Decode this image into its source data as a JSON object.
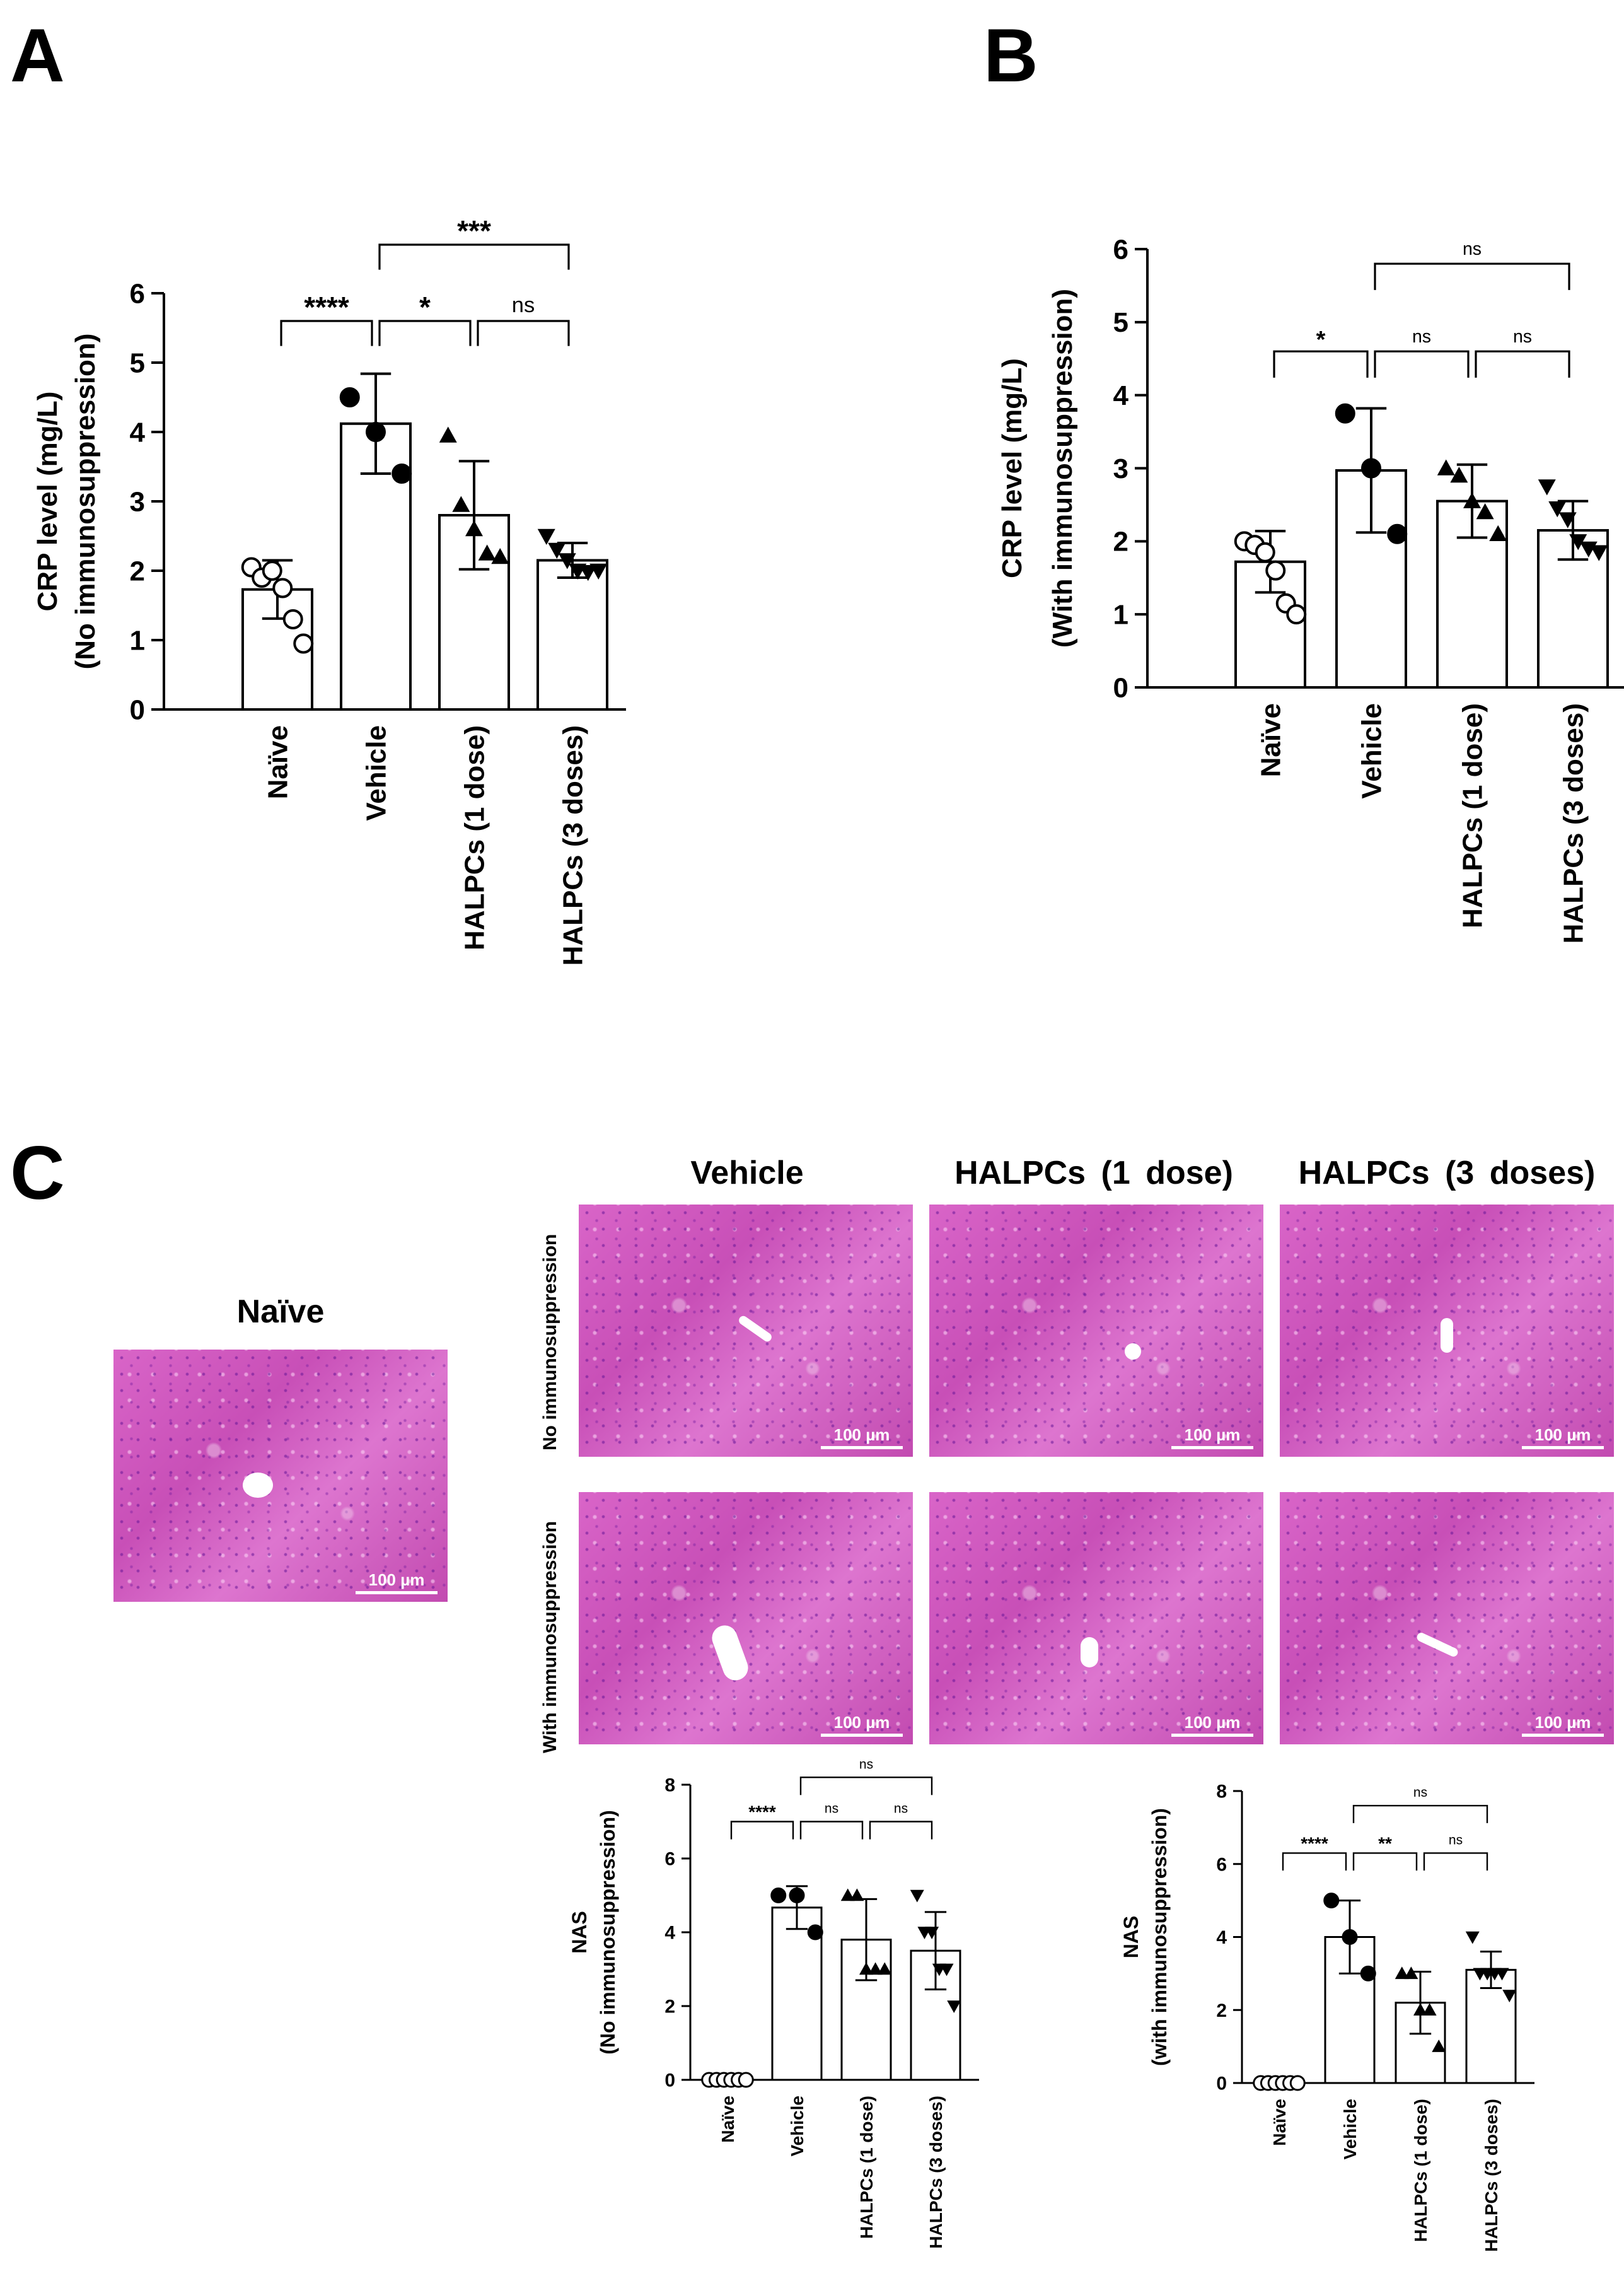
{
  "panels": {
    "a": "A",
    "b": "B",
    "c": "C"
  },
  "chart_data": [
    {
      "id": "A",
      "type": "bar",
      "ylabel": "CRP level (mg/L)",
      "ylabel2": "(No immunosuppression)",
      "ylim": [
        0,
        6
      ],
      "yticks": [
        0,
        1,
        2,
        3,
        4,
        5,
        6
      ],
      "categories": [
        "Naïve",
        "Vehicle",
        "HALPCs (1 dose)",
        "HALPCs (3 doses)"
      ],
      "markers": [
        "circle-open",
        "circle-filled",
        "triangle-up",
        "triangle-down"
      ],
      "values": [
        1.73,
        4.12,
        2.8,
        2.15
      ],
      "errors": [
        0.42,
        0.72,
        0.78,
        0.25
      ],
      "points": [
        [
          2.05,
          1.9,
          2.0,
          1.75,
          1.3,
          0.95
        ],
        [
          4.5,
          4.0,
          3.4
        ],
        [
          3.95,
          2.95,
          2.6,
          2.25,
          2.2
        ],
        [
          2.5,
          2.3,
          2.15,
          2.0,
          1.98,
          2.0
        ]
      ],
      "comparisons": [
        {
          "from": 0,
          "to": 1,
          "label": "****",
          "y": 5.6
        },
        {
          "from": 1,
          "to": 2,
          "label": "*",
          "y": 5.6
        },
        {
          "from": 2,
          "to": 3,
          "label": "ns",
          "y": 5.6
        },
        {
          "from": 1,
          "to": 3,
          "label": "***",
          "y": 6.7
        }
      ]
    },
    {
      "id": "B",
      "type": "bar",
      "ylabel": "CRP level (mg/L)",
      "ylabel2": "(With immunosuppression)",
      "ylim": [
        0,
        6
      ],
      "yticks": [
        0,
        1,
        2,
        3,
        4,
        5,
        6
      ],
      "categories": [
        "Naïve",
        "Vehicle",
        "HALPCs (1 dose)",
        "HALPCs (3 doses)"
      ],
      "markers": [
        "circle-open",
        "circle-filled",
        "triangle-up",
        "triangle-down"
      ],
      "values": [
        1.72,
        2.97,
        2.55,
        2.15
      ],
      "errors": [
        0.42,
        0.85,
        0.5,
        0.4
      ],
      "points": [
        [
          2.0,
          1.95,
          1.85,
          1.6,
          1.15,
          1.0
        ],
        [
          3.75,
          3.0,
          2.1
        ],
        [
          3.0,
          2.9,
          2.55,
          2.4,
          2.1
        ],
        [
          2.75,
          2.45,
          2.3,
          2.0,
          1.9,
          1.85
        ]
      ],
      "comparisons": [
        {
          "from": 0,
          "to": 1,
          "label": "*",
          "y": 4.6
        },
        {
          "from": 1,
          "to": 2,
          "label": "ns",
          "y": 4.6
        },
        {
          "from": 2,
          "to": 3,
          "label": "ns",
          "y": 4.6
        },
        {
          "from": 1,
          "to": 3,
          "label": "ns",
          "y": 5.8
        }
      ]
    },
    {
      "id": "C-left",
      "type": "bar",
      "ylabel": "NAS",
      "ylabel2": "(No immunosuppression)",
      "ylim": [
        0,
        8
      ],
      "yticks": [
        0,
        2,
        4,
        6,
        8
      ],
      "categories": [
        "Naïve",
        "Vehicle",
        "HALPCs (1 dose)",
        "HALPCs (3 doses)"
      ],
      "markers": [
        "circle-open",
        "circle-filled",
        "triangle-up",
        "triangle-down"
      ],
      "values": [
        0,
        4.67,
        3.8,
        3.5
      ],
      "errors": [
        0,
        0.58,
        1.1,
        1.05
      ],
      "points": [
        [
          0,
          0,
          0,
          0,
          0,
          0
        ],
        [
          5,
          5,
          4
        ],
        [
          5,
          5,
          3,
          3,
          3
        ],
        [
          5,
          4,
          4,
          3,
          3,
          2
        ]
      ],
      "comparisons": [
        {
          "from": 0,
          "to": 1,
          "label": "****",
          "y": 7.0
        },
        {
          "from": 1,
          "to": 2,
          "label": "ns",
          "y": 7.0
        },
        {
          "from": 2,
          "to": 3,
          "label": "ns",
          "y": 7.0
        },
        {
          "from": 1,
          "to": 3,
          "label": "ns",
          "y": 8.2
        }
      ]
    },
    {
      "id": "C-right",
      "type": "bar",
      "ylabel": "NAS",
      "ylabel2": "(with immunosuppression)",
      "ylim": [
        0,
        8
      ],
      "yticks": [
        0,
        2,
        4,
        6,
        8
      ],
      "categories": [
        "Naïve",
        "Vehicle",
        "HALPCs (1 dose)",
        "HALPCs (3 doses)"
      ],
      "markers": [
        "circle-open",
        "circle-filled",
        "triangle-up",
        "triangle-down"
      ],
      "values": [
        0,
        4.0,
        2.2,
        3.1
      ],
      "errors": [
        0,
        1.0,
        0.85,
        0.5
      ],
      "points": [
        [
          0,
          0,
          0,
          0,
          0,
          0
        ],
        [
          5,
          4,
          3
        ],
        [
          3,
          3,
          2,
          2,
          1
        ],
        [
          4,
          3,
          3,
          3,
          3,
          2.4
        ]
      ],
      "comparisons": [
        {
          "from": 0,
          "to": 1,
          "label": "****",
          "y": 6.3
        },
        {
          "from": 1,
          "to": 2,
          "label": "**",
          "y": 6.3
        },
        {
          "from": 2,
          "to": 3,
          "label": "ns",
          "y": 6.3
        },
        {
          "from": 1,
          "to": 3,
          "label": "ns",
          "y": 7.6
        }
      ]
    }
  ],
  "histology": {
    "naive_title": "Naïve",
    "columns": [
      "Vehicle",
      "HALPCs (1 dose)",
      "HALPCs (3 doses)"
    ],
    "rows": [
      "No immunosuppression",
      "With immunosuppression"
    ],
    "scale_label": "100 µm"
  }
}
